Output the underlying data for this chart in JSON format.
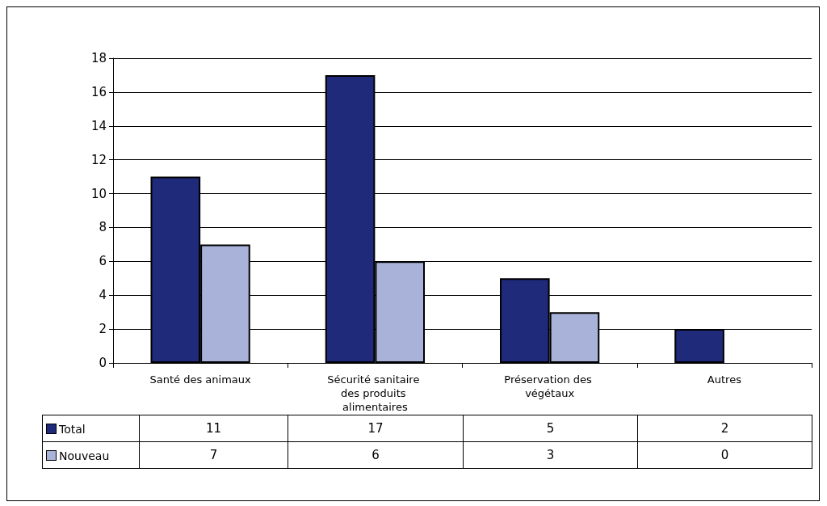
{
  "chart_data": {
    "type": "bar",
    "categories": [
      "Santé des animaux",
      "Sécurité sanitaire des produits alimentaires",
      "Préservation des végétaux",
      "Autres"
    ],
    "series": [
      {
        "name": "Total",
        "color": "#1f2a7a",
        "values": [
          11,
          17,
          5,
          2
        ]
      },
      {
        "name": "Nouveau",
        "color": "#a9b3d9",
        "values": [
          7,
          6,
          3,
          0
        ]
      }
    ],
    "ylim": [
      0,
      18
    ],
    "yticks": [
      0,
      2,
      4,
      6,
      8,
      10,
      12,
      14,
      16,
      18
    ],
    "grid": "y",
    "legend": "bottom",
    "data_labels": true
  }
}
